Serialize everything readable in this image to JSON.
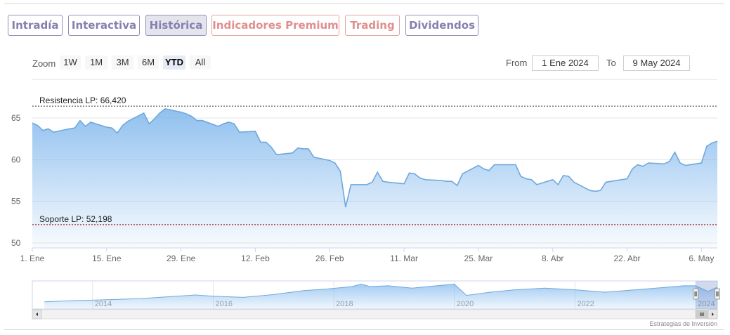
{
  "tabs": [
    {
      "label": "Intradía",
      "style": "normal"
    },
    {
      "label": "Interactiva",
      "style": "normal"
    },
    {
      "label": "Histórica",
      "style": "active"
    },
    {
      "label": "Indicadores Premium",
      "style": "warm"
    },
    {
      "label": "Trading",
      "style": "warm"
    },
    {
      "label": "Dividendos",
      "style": "normal"
    }
  ],
  "range_selector": {
    "zoom_label": "Zoom",
    "buttons": [
      "1W",
      "1M",
      "3M",
      "6M",
      "YTD",
      "All"
    ],
    "selected": "YTD",
    "from_label": "From",
    "from_value": "1 Ene 2024",
    "to_label": "To",
    "to_value": "9 May 2024"
  },
  "credit": "Estrategias de Inversión",
  "colors": {
    "area": "#7cb5ec",
    "line": "#6fa8dc",
    "resistance": "#333333",
    "support": "#8b0000",
    "tab_border": "#8f8fb8",
    "tab_warm": "#e08f8f"
  },
  "chart_data": {
    "type": "area",
    "title": "",
    "xlabel": "",
    "ylabel": "",
    "ylim": [
      50,
      67
    ],
    "yticks": [
      50,
      55,
      60,
      65
    ],
    "xlim": [
      "2024-01-01",
      "2024-05-09"
    ],
    "xticks": [
      {
        "date": "2024-01-01",
        "label": "1. Ene"
      },
      {
        "date": "2024-01-15",
        "label": "15. Ene"
      },
      {
        "date": "2024-01-29",
        "label": "29. Ene"
      },
      {
        "date": "2024-02-12",
        "label": "12. Feb"
      },
      {
        "date": "2024-02-26",
        "label": "26. Feb"
      },
      {
        "date": "2024-03-11",
        "label": "11. Mar"
      },
      {
        "date": "2024-03-25",
        "label": "25. Mar"
      },
      {
        "date": "2024-04-08",
        "label": "8. Abr"
      },
      {
        "date": "2024-04-22",
        "label": "22. Abr"
      },
      {
        "date": "2024-05-06",
        "label": "6. May"
      }
    ],
    "grid": true,
    "x": [
      "2024-01-01",
      "2024-01-02",
      "2024-01-03",
      "2024-01-04",
      "2024-01-05",
      "2024-01-08",
      "2024-01-09",
      "2024-01-10",
      "2024-01-11",
      "2024-01-12",
      "2024-01-15",
      "2024-01-16",
      "2024-01-17",
      "2024-01-18",
      "2024-01-19",
      "2024-01-22",
      "2024-01-23",
      "2024-01-24",
      "2024-01-25",
      "2024-01-26",
      "2024-01-29",
      "2024-01-30",
      "2024-01-31",
      "2024-02-01",
      "2024-02-02",
      "2024-02-05",
      "2024-02-06",
      "2024-02-07",
      "2024-02-08",
      "2024-02-09",
      "2024-02-12",
      "2024-02-13",
      "2024-02-14",
      "2024-02-15",
      "2024-02-16",
      "2024-02-19",
      "2024-02-20",
      "2024-02-21",
      "2024-02-22",
      "2024-02-23",
      "2024-02-26",
      "2024-02-27",
      "2024-02-28",
      "2024-02-29",
      "2024-03-01",
      "2024-03-04",
      "2024-03-05",
      "2024-03-06",
      "2024-03-07",
      "2024-03-08",
      "2024-03-11",
      "2024-03-12",
      "2024-03-13",
      "2024-03-14",
      "2024-03-15",
      "2024-03-18",
      "2024-03-19",
      "2024-03-20",
      "2024-03-21",
      "2024-03-22",
      "2024-03-25",
      "2024-03-26",
      "2024-03-27",
      "2024-03-28",
      "2024-04-01",
      "2024-04-02",
      "2024-04-03",
      "2024-04-04",
      "2024-04-05",
      "2024-04-08",
      "2024-04-09",
      "2024-04-10",
      "2024-04-11",
      "2024-04-12",
      "2024-04-15",
      "2024-04-16",
      "2024-04-17",
      "2024-04-18",
      "2024-04-19",
      "2024-04-22",
      "2024-04-23",
      "2024-04-24",
      "2024-04-25",
      "2024-04-26",
      "2024-04-29",
      "2024-04-30",
      "2024-05-01",
      "2024-05-02",
      "2024-05-03",
      "2024-05-06",
      "2024-05-07",
      "2024-05-08",
      "2024-05-09"
    ],
    "series": [
      {
        "values": [
          64.4,
          64.1,
          63.5,
          63.7,
          63.3,
          63.7,
          63.8,
          64.7,
          64.0,
          64.5,
          63.9,
          63.8,
          63.2,
          64.1,
          64.6,
          65.6,
          64.3,
          64.9,
          65.6,
          66.1,
          65.7,
          65.5,
          65.2,
          64.7,
          64.7,
          64.0,
          64.3,
          64.5,
          64.3,
          63.3,
          63.4,
          62.1,
          62.1,
          61.5,
          60.6,
          60.8,
          61.4,
          61.3,
          61.3,
          60.3,
          59.9,
          59.6,
          58.6,
          54.3,
          57.0,
          57.0,
          57.3,
          58.5,
          57.4,
          57.3,
          57.1,
          58.4,
          58.3,
          57.8,
          57.6,
          57.5,
          57.4,
          57.4,
          56.9,
          58.3,
          59.3,
          58.9,
          58.7,
          59.4,
          59.4,
          58.0,
          57.7,
          57.6,
          57.0,
          57.6,
          57.0,
          58.1,
          58.0,
          57.3,
          56.3,
          56.2,
          56.3,
          57.3,
          57.4,
          57.7,
          58.9,
          59.4,
          59.2,
          59.6,
          59.5,
          59.8,
          60.9,
          59.6,
          59.3,
          59.6,
          61.6,
          62.0,
          62.2
        ]
      }
    ],
    "annotations": [
      {
        "label": "Resistencia LP: 66,420",
        "value": 66.42,
        "kind": "resistance"
      },
      {
        "label": "Soporte LP: 52,198",
        "value": 52.198,
        "kind": "support"
      }
    ],
    "navigator": {
      "year_labels": [
        "2014",
        "2016",
        "2018",
        "2020",
        "2022",
        "2024"
      ],
      "years": [
        2014,
        2016,
        2018,
        2020,
        2022,
        2024
      ],
      "year_range": [
        2013.0,
        2024.36
      ],
      "series": [
        {
          "year": 2013.2,
          "value": 44
        },
        {
          "year": 2013.7,
          "value": 45.5
        },
        {
          "year": 2014.2,
          "value": 46.5
        },
        {
          "year": 2014.8,
          "value": 48
        },
        {
          "year": 2015.3,
          "value": 50.5
        },
        {
          "year": 2015.7,
          "value": 52.5
        },
        {
          "year": 2016.0,
          "value": 51
        },
        {
          "year": 2016.5,
          "value": 49.5
        },
        {
          "year": 2017.0,
          "value": 53
        },
        {
          "year": 2017.5,
          "value": 58
        },
        {
          "year": 2017.9,
          "value": 60
        },
        {
          "year": 2018.3,
          "value": 63
        },
        {
          "year": 2018.45,
          "value": 66
        },
        {
          "year": 2018.6,
          "value": 63
        },
        {
          "year": 2018.9,
          "value": 64
        },
        {
          "year": 2019.3,
          "value": 61
        },
        {
          "year": 2019.7,
          "value": 64
        },
        {
          "year": 2020.0,
          "value": 66
        },
        {
          "year": 2020.2,
          "value": 52
        },
        {
          "year": 2020.6,
          "value": 56
        },
        {
          "year": 2021.0,
          "value": 59
        },
        {
          "year": 2021.5,
          "value": 61
        },
        {
          "year": 2022.0,
          "value": 59
        },
        {
          "year": 2022.5,
          "value": 56
        },
        {
          "year": 2023.0,
          "value": 59
        },
        {
          "year": 2023.5,
          "value": 62
        },
        {
          "year": 2023.8,
          "value": 64
        },
        {
          "year": 2024.0,
          "value": 64
        },
        {
          "year": 2024.2,
          "value": 57
        },
        {
          "year": 2024.36,
          "value": 62
        }
      ],
      "ylim": [
        35,
        70
      ],
      "selected_range": [
        2024.0,
        2024.36
      ]
    }
  }
}
